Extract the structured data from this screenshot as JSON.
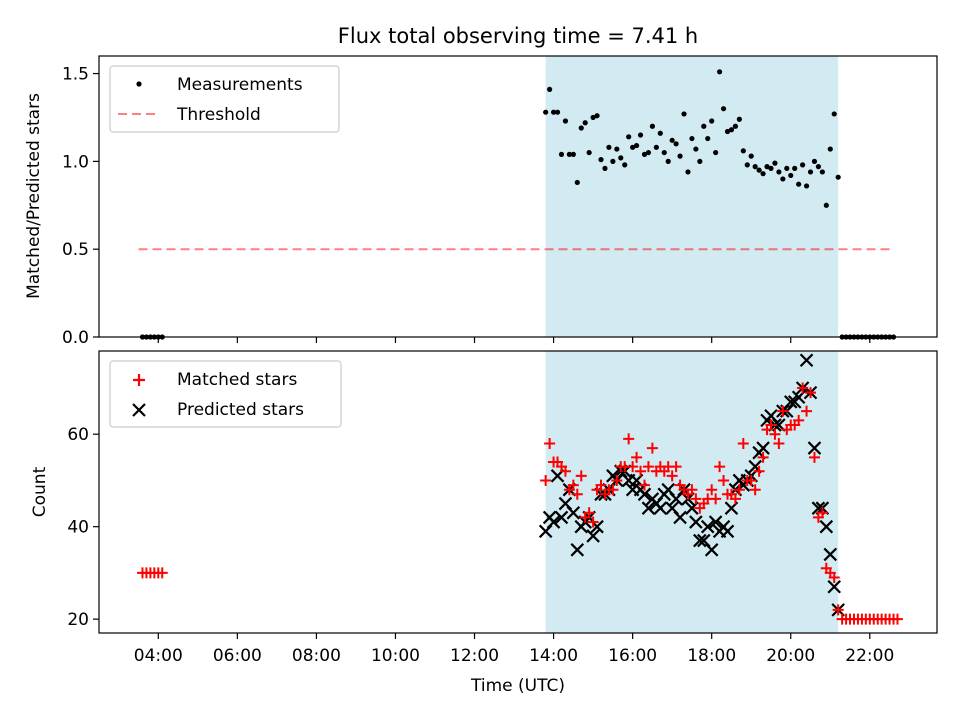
{
  "title": "Flux total observing time = 7.41 h",
  "colors": {
    "shade": "#add8e6",
    "threshold": "#ff0000",
    "matched": "#ff0000",
    "predicted": "#000000",
    "measurement": "#000000"
  },
  "chart_data": [
    {
      "type": "scatter",
      "name": "top",
      "ylabel": "Matched/Predicted stars",
      "ylim": [
        0,
        1.6
      ],
      "yticks": [
        "0.0",
        "0.5",
        "1.0",
        "1.5"
      ],
      "ytick_values": [
        0,
        0.5,
        1.0,
        1.5
      ],
      "xlim": [
        2.5,
        23.7
      ],
      "shaded_span": [
        13.8,
        21.2
      ],
      "legend": {
        "placement": "top-left",
        "entries": [
          "Measurements",
          "Threshold"
        ]
      },
      "threshold": {
        "label": "Threshold",
        "y": 0.5,
        "x_range": [
          3.5,
          22.6
        ]
      },
      "measurements": {
        "label": "Measurements",
        "x": [
          3.6,
          3.7,
          3.8,
          3.9,
          4.0,
          4.1,
          13.8,
          13.9,
          14.0,
          14.1,
          14.2,
          14.3,
          14.4,
          14.5,
          14.6,
          14.7,
          14.8,
          14.9,
          15.0,
          15.1,
          15.2,
          15.3,
          15.4,
          15.5,
          15.6,
          15.7,
          15.8,
          15.9,
          16.0,
          16.1,
          16.2,
          16.3,
          16.4,
          16.5,
          16.6,
          16.7,
          16.8,
          16.9,
          17.0,
          17.1,
          17.2,
          17.3,
          17.4,
          17.5,
          17.6,
          17.7,
          17.8,
          17.9,
          18.0,
          18.1,
          18.2,
          18.3,
          18.4,
          18.5,
          18.6,
          18.7,
          18.8,
          18.9,
          19.0,
          19.1,
          19.2,
          19.3,
          19.4,
          19.5,
          19.6,
          19.7,
          19.8,
          19.9,
          20.0,
          20.1,
          20.2,
          20.3,
          20.4,
          20.5,
          20.6,
          20.7,
          20.8,
          20.9,
          21.0,
          21.1,
          21.2,
          21.3,
          21.4,
          21.5,
          21.6,
          21.7,
          21.8,
          21.9,
          22.0,
          22.1,
          22.2,
          22.3,
          22.4,
          22.5,
          22.6
        ],
        "y": [
          0,
          0,
          0,
          0,
          0,
          0,
          1.28,
          1.41,
          1.28,
          1.28,
          1.04,
          1.23,
          1.04,
          1.04,
          0.88,
          1.19,
          1.22,
          1.05,
          1.25,
          1.26,
          1.01,
          0.96,
          1.08,
          1.0,
          1.07,
          1.02,
          0.98,
          1.14,
          1.08,
          1.09,
          1.15,
          1.04,
          1.05,
          1.2,
          1.08,
          1.16,
          1.05,
          1.0,
          1.12,
          1.1,
          1.03,
          1.27,
          0.94,
          1.13,
          1.07,
          1.0,
          1.2,
          1.13,
          1.23,
          1.05,
          1.51,
          1.3,
          1.17,
          1.18,
          1.2,
          1.24,
          1.06,
          0.98,
          1.03,
          0.97,
          0.95,
          0.93,
          0.97,
          0.96,
          0.99,
          0.94,
          0.9,
          0.96,
          0.92,
          0.96,
          0.87,
          0.98,
          0.86,
          0.94,
          1.0,
          0.97,
          0.94,
          0.75,
          1.07,
          1.27,
          0.91,
          0,
          0,
          0,
          0,
          0,
          0,
          0,
          0,
          0,
          0,
          0,
          0,
          0,
          0
        ]
      }
    },
    {
      "type": "scatter",
      "name": "bottom",
      "ylabel": "Count",
      "xlabel": "Time (UTC)",
      "ylim": [
        17,
        78
      ],
      "yticks": [
        "20",
        "40",
        "60"
      ],
      "ytick_values": [
        20,
        40,
        60
      ],
      "xlim": [
        2.5,
        23.7
      ],
      "xticks": [
        "04:00",
        "06:00",
        "08:00",
        "10:00",
        "12:00",
        "14:00",
        "16:00",
        "18:00",
        "20:00",
        "22:00"
      ],
      "xtick_values": [
        4,
        6,
        8,
        10,
        12,
        14,
        16,
        18,
        20,
        22
      ],
      "shaded_span": [
        13.8,
        21.2
      ],
      "legend": {
        "placement": "top-left",
        "entries": [
          "Matched stars",
          "Predicted stars"
        ]
      },
      "series": [
        {
          "name": "Matched stars",
          "marker": "plus",
          "x": [
            3.6,
            3.7,
            3.8,
            3.9,
            4.0,
            4.1,
            13.8,
            13.9,
            14.0,
            14.1,
            14.2,
            14.3,
            14.4,
            14.5,
            14.6,
            14.7,
            14.8,
            14.9,
            15.0,
            15.1,
            15.2,
            15.3,
            15.4,
            15.5,
            15.6,
            15.7,
            15.8,
            15.9,
            16.0,
            16.1,
            16.2,
            16.3,
            16.4,
            16.5,
            16.6,
            16.7,
            16.8,
            16.9,
            17.0,
            17.1,
            17.2,
            17.3,
            17.4,
            17.5,
            17.6,
            17.7,
            17.8,
            17.9,
            18.0,
            18.1,
            18.2,
            18.3,
            18.4,
            18.5,
            18.6,
            18.7,
            18.8,
            18.9,
            19.0,
            19.1,
            19.2,
            19.3,
            19.4,
            19.5,
            19.6,
            19.7,
            19.8,
            19.9,
            20.0,
            20.1,
            20.2,
            20.3,
            20.4,
            20.5,
            20.6,
            20.7,
            20.8,
            20.9,
            21.0,
            21.1,
            21.2,
            21.3,
            21.4,
            21.5,
            21.6,
            21.7,
            21.8,
            21.9,
            22.0,
            22.1,
            22.2,
            22.3,
            22.4,
            22.5,
            22.6,
            22.7
          ],
          "y": [
            30,
            30,
            30,
            30,
            30,
            30,
            50,
            58,
            54,
            54,
            53,
            52,
            48,
            49,
            47,
            51,
            42,
            43,
            41,
            48,
            49,
            47,
            48,
            48,
            50,
            53,
            53,
            59,
            53,
            55,
            52,
            49,
            53,
            57,
            52,
            53,
            52,
            53,
            51,
            53,
            49,
            48,
            47,
            48,
            46,
            44,
            45,
            46,
            48,
            46,
            53,
            50,
            47,
            47,
            46,
            48,
            58,
            50,
            50,
            48,
            52,
            55,
            61,
            62,
            60,
            58,
            65,
            61,
            62,
            62,
            63,
            70,
            65,
            69,
            55,
            42,
            43,
            31,
            30,
            29,
            22,
            20,
            20,
            20,
            20,
            20,
            20,
            20,
            20,
            20,
            20,
            20,
            20,
            20,
            20,
            20
          ],
          "color": "#ff0000"
        },
        {
          "name": "Predicted stars",
          "marker": "x",
          "x": [
            13.8,
            13.9,
            14.0,
            14.1,
            14.2,
            14.3,
            14.4,
            14.5,
            14.6,
            14.7,
            14.8,
            14.9,
            15.0,
            15.1,
            15.2,
            15.3,
            15.4,
            15.5,
            15.6,
            15.7,
            15.8,
            15.9,
            16.0,
            16.1,
            16.2,
            16.3,
            16.4,
            16.5,
            16.6,
            16.7,
            16.8,
            16.9,
            17.0,
            17.1,
            17.2,
            17.3,
            17.4,
            17.5,
            17.6,
            17.7,
            17.8,
            17.9,
            18.0,
            18.1,
            18.2,
            18.3,
            18.4,
            18.5,
            18.6,
            18.7,
            18.8,
            18.9,
            19.0,
            19.1,
            19.2,
            19.3,
            19.4,
            19.5,
            19.6,
            19.7,
            19.8,
            19.9,
            20.0,
            20.1,
            20.2,
            20.3,
            20.4,
            20.5,
            20.6,
            20.7,
            20.8,
            20.9,
            21.0,
            21.1,
            21.2
          ],
          "y": [
            39,
            42,
            41,
            51,
            42,
            45,
            48,
            43,
            35,
            40,
            41,
            42,
            38,
            40,
            47,
            47,
            48,
            51,
            50,
            52,
            52,
            50,
            48,
            50,
            48,
            47,
            44,
            46,
            45,
            44,
            47,
            48,
            44,
            46,
            42,
            48,
            46,
            44,
            41,
            37,
            37,
            40,
            35,
            41,
            39,
            40,
            39,
            44,
            48,
            50,
            49,
            50,
            51,
            53,
            56,
            57,
            63,
            64,
            62,
            62,
            65,
            65,
            67,
            67,
            68,
            70,
            76,
            69,
            57,
            44,
            44,
            40,
            34,
            27,
            22
          ],
          "color": "#000000"
        }
      ]
    }
  ]
}
